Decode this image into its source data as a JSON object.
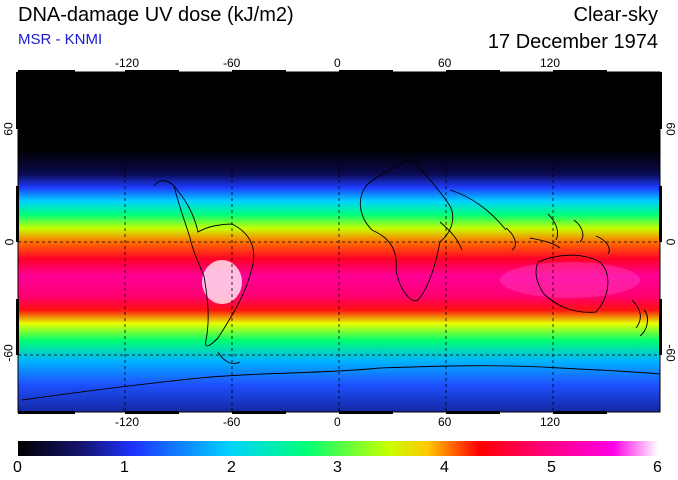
{
  "header": {
    "title": "DNA-damage UV dose (kJ/m2)",
    "subtitle": "MSR - KNMI",
    "condition": "Clear-sky",
    "date": "17 December 1974"
  },
  "colors": {
    "subtitle": "#1a1acc",
    "frame": "#000000",
    "grid": "#000000",
    "coast": "#000000"
  },
  "map": {
    "lon_ticks": [
      "-120",
      "-60",
      "0",
      "60",
      "120"
    ],
    "lat_ticks": [
      "60",
      "0",
      "-60"
    ]
  },
  "colorbar": {
    "min": 0,
    "max": 6,
    "tick_labels": [
      "0",
      "1",
      "2",
      "3",
      "4",
      "5",
      "6"
    ],
    "stops": [
      "#000000",
      "#14146e",
      "#1e32ff",
      "#00d2ff",
      "#00ff78",
      "#c8ff00",
      "#ffc800",
      "#ff0000",
      "#ff0078",
      "#ff00e6",
      "#ffffff"
    ]
  }
}
